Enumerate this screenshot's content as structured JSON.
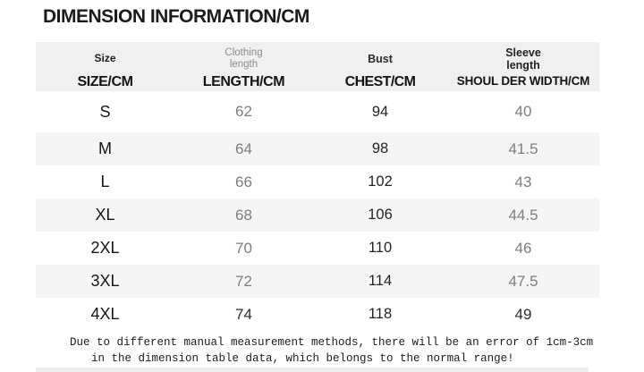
{
  "title": "DIMENSION INFORMATION/CM",
  "colors": {
    "header_bg": "#f0f0f0",
    "stripe_bg": "#f5f5f5",
    "muted_text": "#7e7e7e",
    "dark_text": "#1f1f1f"
  },
  "header": {
    "columns": [
      {
        "sub": "Size",
        "label": "SIZE/CM"
      },
      {
        "sub": "Clothing\nlength",
        "label": "LENGTH/CM"
      },
      {
        "sub": "Bust",
        "label": "CHEST/CM"
      },
      {
        "sub": "Sleeve\nlength",
        "label": "SHOUL DER WIDTH/CM"
      }
    ]
  },
  "chart_data": {
    "type": "table",
    "title": "DIMENSION INFORMATION/CM",
    "columns": [
      "SIZE/CM",
      "LENGTH/CM",
      "CHEST/CM",
      "SHOUL DER WIDTH/CM"
    ],
    "column_subtitles": [
      "Size",
      "Clothing length",
      "Bust",
      "Sleeve length"
    ],
    "rows": [
      [
        "S",
        "62",
        "94",
        "40"
      ],
      [
        "M",
        "64",
        "98",
        "41.5"
      ],
      [
        "L",
        "66",
        "102",
        "43"
      ],
      [
        "XL",
        "68",
        "106",
        "44.5"
      ],
      [
        "2XL",
        "70",
        "110",
        "46"
      ],
      [
        "3XL",
        "72",
        "114",
        "47.5"
      ],
      [
        "4XL",
        "74",
        "118",
        "49"
      ]
    ]
  },
  "footer": {
    "line1": "Due to different manual measurement methods, there will be an error of 1cm-3cm",
    "line2": "in the dimension table data, which belongs to the normal range!"
  }
}
